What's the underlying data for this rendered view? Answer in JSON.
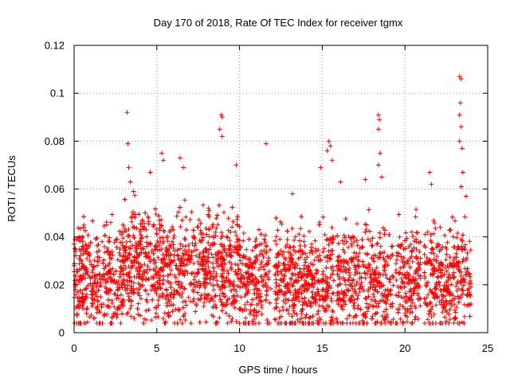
{
  "chart_data": {
    "type": "scatter",
    "title": "Day 170 of 2018, Rate Of TEC Index for receiver tgmx",
    "xlabel": "GPS time / hours",
    "ylabel": "ROTI / TECUs",
    "xlim": [
      0,
      25
    ],
    "ylim": [
      0,
      0.12
    ],
    "xticks": [
      0,
      5,
      10,
      15,
      20,
      25
    ],
    "xtick_labels": [
      "0",
      "5",
      "10",
      "15",
      "20",
      "25"
    ],
    "yticks": [
      0,
      0.02,
      0.04,
      0.06,
      0.08,
      0.1,
      0.12
    ],
    "ytick_labels": [
      "0",
      "0.02",
      "0.04",
      "0.06",
      "0.08",
      "0.1",
      "0.12"
    ],
    "grid": true,
    "marker": "+",
    "color": "#ff0000",
    "series": [
      {
        "name": "ROTI",
        "points": [
          [
            3.2,
            0.092
          ],
          [
            3.25,
            0.079
          ],
          [
            3.3,
            0.069
          ],
          [
            3.4,
            0.063
          ],
          [
            4.6,
            0.067
          ],
          [
            5.3,
            0.075
          ],
          [
            5.4,
            0.072
          ],
          [
            6.4,
            0.073
          ],
          [
            6.6,
            0.069
          ],
          [
            8.9,
            0.091
          ],
          [
            8.95,
            0.09
          ],
          [
            8.8,
            0.085
          ],
          [
            8.95,
            0.082
          ],
          [
            9.8,
            0.07
          ],
          [
            11.6,
            0.079
          ],
          [
            13.2,
            0.058
          ],
          [
            14.9,
            0.069
          ],
          [
            15.4,
            0.08
          ],
          [
            15.3,
            0.076
          ],
          [
            15.5,
            0.078
          ],
          [
            15.6,
            0.072
          ],
          [
            16.1,
            0.063
          ],
          [
            17.6,
            0.064
          ],
          [
            18.4,
            0.091
          ],
          [
            18.45,
            0.089
          ],
          [
            18.4,
            0.085
          ],
          [
            18.5,
            0.075
          ],
          [
            18.4,
            0.07
          ],
          [
            18.6,
            0.065
          ],
          [
            21.5,
            0.067
          ],
          [
            21.6,
            0.062
          ],
          [
            23.3,
            0.107
          ],
          [
            23.4,
            0.106
          ],
          [
            23.35,
            0.096
          ],
          [
            23.3,
            0.091
          ],
          [
            23.4,
            0.086
          ],
          [
            23.3,
            0.08
          ],
          [
            23.45,
            0.077
          ],
          [
            23.5,
            0.067
          ],
          [
            23.4,
            0.061
          ],
          [
            23.7,
            0.057
          ]
        ]
      }
    ]
  }
}
